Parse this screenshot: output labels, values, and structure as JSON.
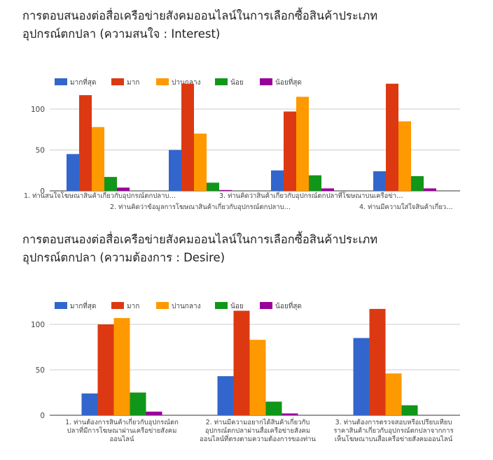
{
  "legend_labels": [
    "มากที่สุด",
    "มาก",
    "ปานกลาง",
    "น้อย",
    "น้อยที่สุด"
  ],
  "colors": [
    "#3366cc",
    "#dc3912",
    "#ff9900",
    "#109618",
    "#990099"
  ],
  "chart_data": [
    {
      "type": "bar",
      "title_line1": "การตอบสนองต่อสื่อเครือข่ายสังคมออนไลน์ในการเลือกซื้อสินค้าประเภท",
      "title_line2": "อุปกรณ์ตกปลา (ความสนใจ : Interest)",
      "categories": [
        "1. ท่านสนใจโฆษณาสินค้าเกี่ยวกับอุปกรณ์ตกปลาบ…",
        "2. ท่านคิดว่าข้อมูลการโฆษณาสินค้าเกี่ยวกับอุปกรณ์ตกปลาบ…",
        "3. ท่านคิดว่าสินค้าเกี่ยวกับอุปกรณ์ตกปลาที่โฆษณาบนเครือข่า…",
        "4. ท่านมีความใส่ใจสินค้าเกี่ยว…"
      ],
      "series": [
        {
          "name": "มากที่สุด",
          "values": [
            45,
            50,
            25,
            24
          ]
        },
        {
          "name": "มาก",
          "values": [
            117,
            131,
            97,
            131
          ]
        },
        {
          "name": "ปานกลาง",
          "values": [
            78,
            70,
            115,
            85
          ]
        },
        {
          "name": "น้อย",
          "values": [
            17,
            10,
            19,
            18
          ]
        },
        {
          "name": "น้อยที่สุด",
          "values": [
            4,
            1,
            3,
            3
          ]
        }
      ],
      "yticks": [
        "0",
        "50",
        "100"
      ],
      "ylim": [
        0,
        130
      ],
      "grid": true,
      "legend": "top-left"
    },
    {
      "type": "bar",
      "title_line1": "การตอบสนองต่อสื่อเครือข่ายสังคมออนไลน์ในการเลือกซื้อสินค้าประเภท",
      "title_line2": "อุปกรณ์ตกปลา (ความต้องการ : Desire)",
      "categories": [
        [
          "1. ท่านต้องการสินค้าเกี่ยวกับอุปกรณ์ตก",
          "ปลาที่มีการโฆษณาผ่านเครือข่ายสังคม",
          "ออนไลน์"
        ],
        [
          "2. ท่านมีความอยากได้สินค้าเกี่ยวกับ",
          "อุปกรณ์ตกปลาผ่านสื่อเครือข่ายสังคม",
          "ออนไลน์ที่ตรงตามความต้องการของท่าน"
        ],
        [
          "3. ท่านต้องการตรวจสอบหรือเปรียบเทียบ",
          "ราคาสินค้าเกี่ยวกับอุปกรณ์ตกปลาจากการ",
          "เห็นโฆษณาบนสื่อเครือข่ายสังคมออนไลน์"
        ]
      ],
      "series": [
        {
          "name": "มากที่สุด",
          "values": [
            24,
            43,
            85
          ]
        },
        {
          "name": "มาก",
          "values": [
            100,
            115,
            117
          ]
        },
        {
          "name": "ปานกลาง",
          "values": [
            107,
            83,
            46
          ]
        },
        {
          "name": "น้อย",
          "values": [
            25,
            15,
            11
          ]
        },
        {
          "name": "น้อยที่สุด",
          "values": [
            4,
            2,
            0
          ]
        }
      ],
      "yticks": [
        "0",
        "50",
        "100"
      ],
      "ylim": [
        0,
        125
      ],
      "grid": true,
      "legend": "top-left"
    }
  ]
}
